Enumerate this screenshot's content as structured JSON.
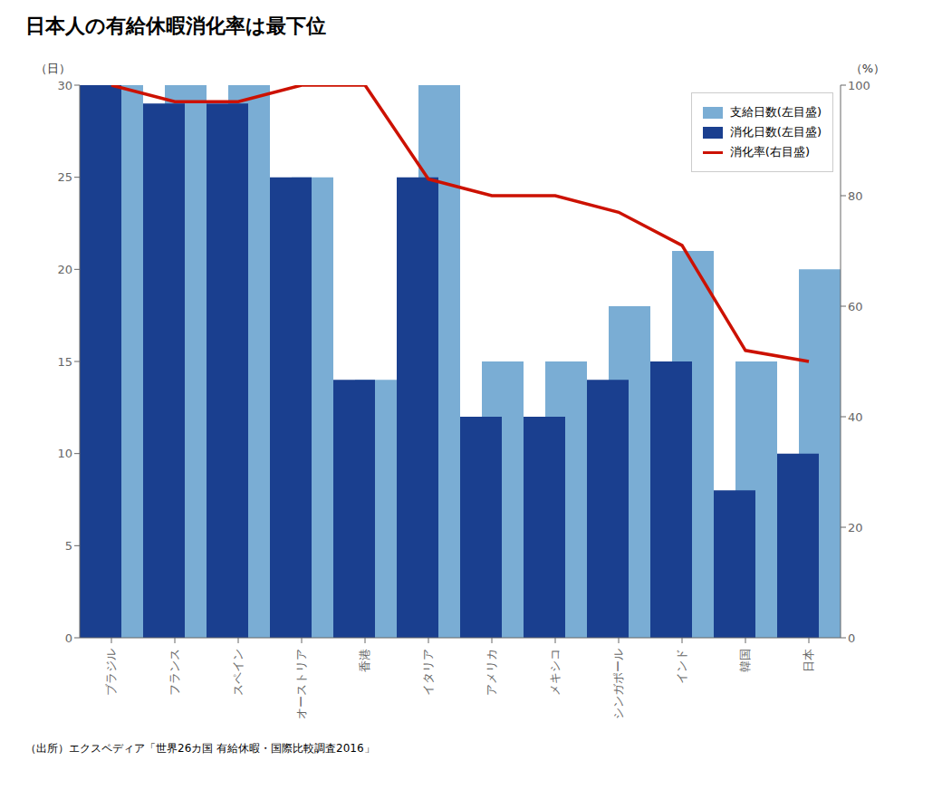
{
  "chart_data": {
    "type": "bar",
    "title": "日本人の有給休暇消化率は最下位",
    "annotations": [
      "（出所）エクスペディア「世界26カ国 有給休暇・国際比較調査2016」"
    ],
    "categories": [
      "ブラジル",
      "フランス",
      "スペイン",
      "オーストリア",
      "香港",
      "イタリア",
      "アメリカ",
      "メキシコ",
      "シンガポール",
      "インド",
      "韓国",
      "日本"
    ],
    "series": [
      {
        "name": "支給日数(左目盛)",
        "type": "bar",
        "color": "#7aadd4",
        "values": [
          30,
          30,
          30,
          25,
          14,
          30,
          15,
          15,
          18,
          21,
          15,
          20
        ]
      },
      {
        "name": "消化日数(左目盛)",
        "type": "bar",
        "color": "#1a3f8f",
        "values": [
          30,
          29,
          29,
          25,
          14,
          25,
          12,
          12,
          14,
          15,
          8,
          10
        ]
      },
      {
        "name": "消化率(右目盛)",
        "type": "line",
        "color": "#cc1100",
        "axis": "y2",
        "values": [
          100,
          97,
          97,
          100,
          100,
          83,
          80,
          80,
          77,
          71,
          52,
          50
        ]
      }
    ],
    "ylabel": "（日）",
    "y2label": "（%）",
    "ylim": [
      0,
      30
    ],
    "yticks": [
      0,
      5,
      10,
      15,
      20,
      25,
      30
    ],
    "y2lim": [
      0,
      100
    ],
    "y2ticks": [
      0,
      20,
      40,
      60,
      80,
      100
    ],
    "legend": "upper right",
    "grid": false
  }
}
